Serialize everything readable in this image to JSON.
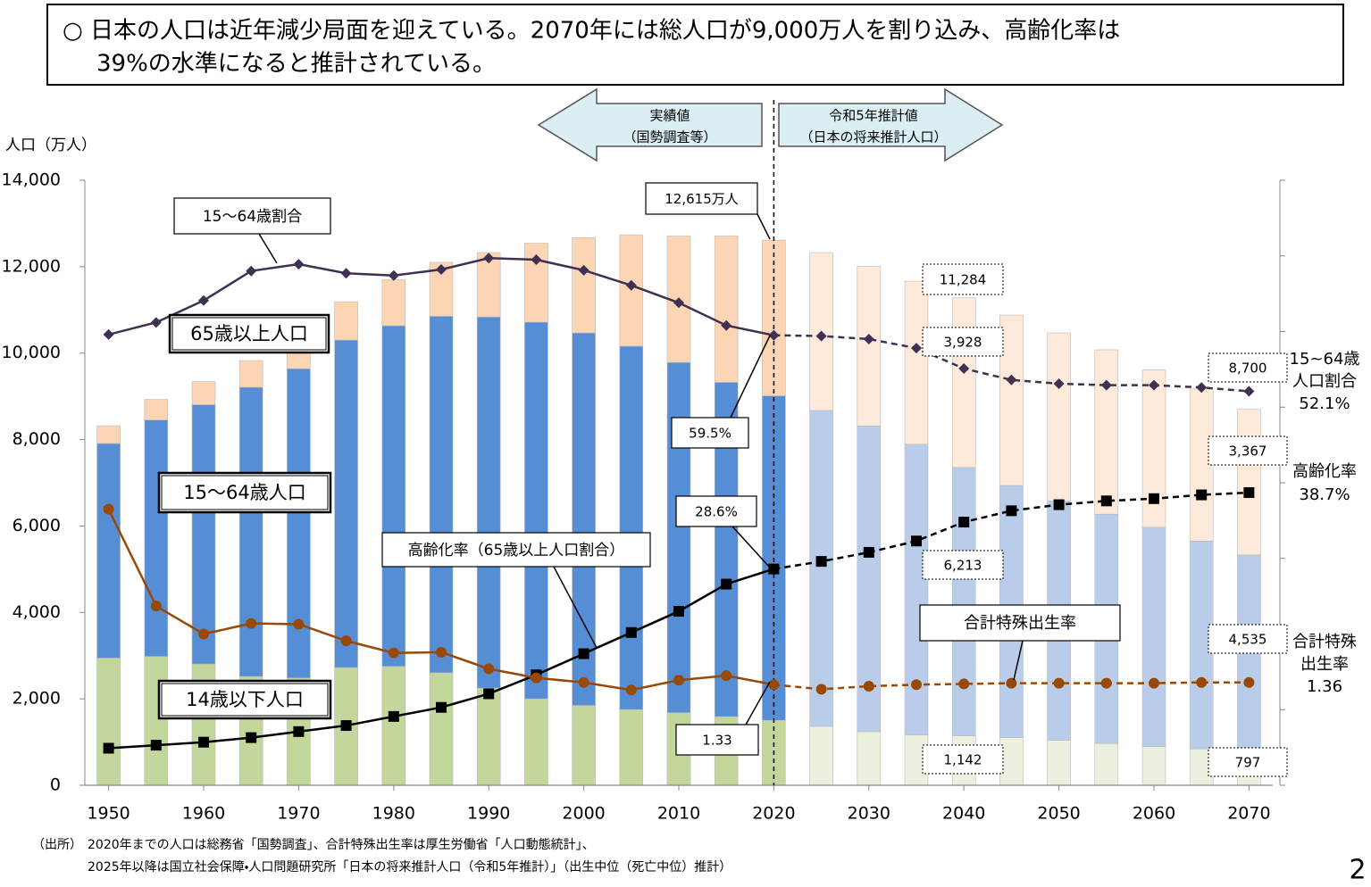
{
  "chart_data": {
    "type": "bar",
    "stacked": true,
    "header": [
      "○ 日本の人口は近年減少局面を迎えている。2070年には総人口が9,000万人を割り込み、高齢化率は",
      "39%の水準になると推計されている。"
    ],
    "ylabel": "人口（万人）",
    "phases": [
      {
        "lines": [
          "実績値",
          "（国勢調査等）"
        ]
      },
      {
        "lines": [
          "令和5年推計値",
          "（日本の将来推計人口）"
        ]
      }
    ],
    "divider_x": 2020,
    "x": [
      1950,
      1955,
      1960,
      1965,
      1970,
      1975,
      1980,
      1985,
      1990,
      1995,
      2000,
      2005,
      2010,
      2015,
      2020,
      2025,
      2030,
      2035,
      2040,
      2045,
      2050,
      2055,
      2060,
      2065,
      2070
    ],
    "xlim": [
      1947.5,
      2072.5
    ],
    "xticks": [
      1950,
      1960,
      1970,
      1980,
      1990,
      2000,
      2010,
      2020,
      2030,
      2040,
      2050,
      2060,
      2070
    ],
    "ylim": [
      0,
      14000
    ],
    "yticks": [
      0,
      {
        "value": 2000,
        "label": "2,000"
      },
      {
        "value": 4000,
        "label": "4,000"
      },
      {
        "value": 6000,
        "label": "6,000"
      },
      {
        "value": 8000,
        "label": "8,000"
      },
      {
        "value": 10000,
        "label": "10,000"
      },
      {
        "value": 12000,
        "label": "12,000"
      },
      {
        "value": 14000,
        "label": "14,000"
      }
    ],
    "y2lim": [
      0,
      80
    ],
    "y2ticks": [
      0,
      10,
      20,
      30,
      40,
      50,
      60,
      70,
      80
    ],
    "y3lim": [
      0,
      8
    ],
    "series": [
      {
        "name": "14歳以下人口",
        "color": "#c3d69b",
        "projection_color": "#ebf1de",
        "values": [
          2943,
          2980,
          2807,
          2517,
          2482,
          2722,
          2751,
          2603,
          2249,
          2001,
          1847,
          1752,
          1680,
          1589,
          1503,
          1363,
          1240,
          1169,
          1142,
          1103,
          1041,
          966,
          893,
          842,
          797
        ],
        "value_labels": [
          null,
          null,
          null,
          null,
          null,
          null,
          null,
          null,
          null,
          null,
          null,
          null,
          null,
          null,
          null,
          null,
          null,
          null,
          "1,142",
          null,
          null,
          null,
          null,
          null,
          "797"
        ]
      },
      {
        "name": "15～64歳人口",
        "color": "#558ed5",
        "projection_color": "#b9cdea",
        "values": [
          4966,
          5473,
          6000,
          6693,
          7157,
          7581,
          7883,
          8251,
          8590,
          8716,
          8622,
          8409,
          8103,
          7735,
          7509,
          7310,
          7076,
          6722,
          6213,
          5832,
          5540,
          5307,
          5078,
          4809,
          4535
        ],
        "value_labels": [
          null,
          null,
          null,
          null,
          null,
          null,
          null,
          null,
          null,
          null,
          null,
          null,
          null,
          null,
          null,
          null,
          null,
          null,
          "6,213",
          null,
          null,
          null,
          null,
          null,
          "4,535"
        ]
      },
      {
        "name": "65歳以上人口",
        "color": "#fcd5b5",
        "projection_color": "#fdeada",
        "values": [
          411,
          475,
          535,
          618,
          733,
          887,
          1065,
          1247,
          1489,
          1826,
          2204,
          2576,
          2925,
          3387,
          3603,
          3653,
          3696,
          3773,
          3928,
          3945,
          3888,
          3804,
          3644,
          3522,
          3367
        ],
        "value_labels": [
          null,
          null,
          null,
          null,
          null,
          null,
          null,
          null,
          null,
          null,
          null,
          null,
          null,
          null,
          null,
          null,
          null,
          null,
          "3,928",
          null,
          null,
          null,
          null,
          null,
          "3,367"
        ]
      }
    ],
    "lines": [
      {
        "type": "line",
        "name": "15～64歳割合",
        "axis": "y2",
        "color": "#403152",
        "marker": "diamond",
        "values": [
          59.6,
          61.2,
          64.1,
          68.0,
          68.9,
          67.7,
          67.4,
          68.2,
          69.7,
          69.5,
          68.1,
          66.1,
          63.8,
          60.8,
          59.5,
          59.4,
          59.0,
          57.8,
          55.1,
          53.6,
          53.1,
          52.9,
          52.9,
          52.6,
          52.1
        ],
        "value_labels": [
          null,
          null,
          null,
          null,
          null,
          null,
          null,
          null,
          null,
          null,
          null,
          null,
          null,
          null,
          "59.5%",
          null,
          null,
          null,
          null,
          null,
          null,
          null,
          null,
          null,
          "52.1%"
        ]
      },
      {
        "type": "line",
        "name": "高齢化率（65歳以上人口割合）",
        "axis": "y2",
        "color": "#000000",
        "marker": "square",
        "values": [
          4.9,
          5.3,
          5.7,
          6.3,
          7.1,
          7.9,
          9.1,
          10.3,
          12.1,
          14.6,
          17.4,
          20.2,
          23.0,
          26.6,
          28.6,
          29.6,
          30.8,
          32.3,
          34.8,
          36.3,
          37.1,
          37.6,
          37.9,
          38.4,
          38.7
        ],
        "value_labels": [
          null,
          null,
          null,
          null,
          null,
          null,
          null,
          null,
          null,
          null,
          null,
          null,
          null,
          null,
          "28.6%",
          null,
          null,
          null,
          null,
          null,
          null,
          null,
          null,
          null,
          "38.7%"
        ]
      },
      {
        "type": "line",
        "name": "合計特殊出生率",
        "axis": "y3",
        "color": "#984807",
        "marker": "circle",
        "values": [
          3.65,
          2.37,
          2.0,
          2.14,
          2.13,
          1.91,
          1.75,
          1.76,
          1.54,
          1.42,
          1.36,
          1.26,
          1.39,
          1.45,
          1.33,
          1.27,
          1.31,
          1.33,
          1.34,
          1.35,
          1.35,
          1.35,
          1.35,
          1.36,
          1.36
        ],
        "value_labels": [
          null,
          null,
          null,
          null,
          null,
          null,
          null,
          null,
          null,
          null,
          null,
          null,
          null,
          null,
          "1.33",
          null,
          null,
          null,
          null,
          null,
          null,
          null,
          null,
          null,
          "1.36"
        ]
      }
    ],
    "annotations": [
      "12,615万人",
      "11,284",
      "8,700"
    ],
    "right_labels": [
      [
        "15~64歳",
        "人口割合"
      ],
      [
        "高齢化率"
      ],
      [
        "合計特殊",
        "出生率"
      ]
    ],
    "source": [
      "（出所）",
      "2020年までの人口は総務省「国勢調査」、合計特殊出生率は厚生労働省「人口動態統計」、",
      "2025年以降は国立社会保障・人口問題研究所「日本の将来推計人口（令和5年推計）」（出生中位（死亡中位）推計）"
    ],
    "page_number": "2"
  }
}
